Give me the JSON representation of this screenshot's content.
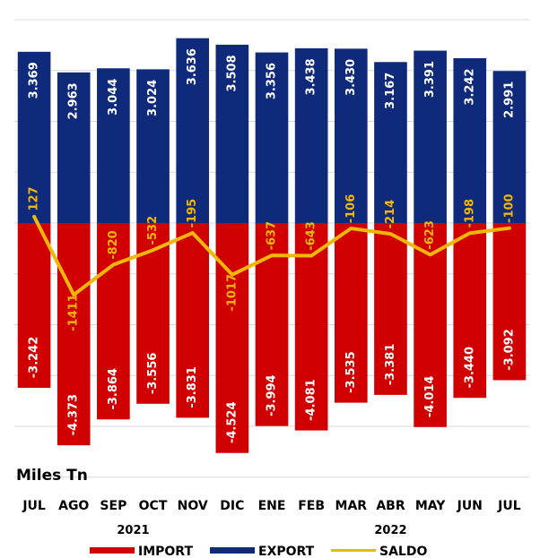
{
  "chart_data": {
    "type": "bar",
    "unit_label": "Miles Tn",
    "categories": [
      "JUL",
      "AGO",
      "SEP",
      "OCT",
      "NOV",
      "DIC",
      "ENE",
      "FEB",
      "MAR",
      "ABR",
      "MAY",
      "JUN",
      "JUL"
    ],
    "years": [
      {
        "label": "2021",
        "from": 0,
        "to": 5
      },
      {
        "label": "2022",
        "from": 6,
        "to": 12
      }
    ],
    "series": [
      {
        "name": "EXPORT",
        "type": "bar",
        "color": "#0f2a7a",
        "values": [
          3369,
          2963,
          3044,
          3024,
          3636,
          3508,
          3356,
          3438,
          3430,
          3167,
          3391,
          3242,
          2991
        ],
        "labels": [
          "3.369",
          "2.963",
          "3.044",
          "3.024",
          "3.636",
          "3.508",
          "3.356",
          "3.438",
          "3.430",
          "3.167",
          "3.391",
          "3.242",
          "2.991"
        ]
      },
      {
        "name": "IMPORT",
        "type": "bar",
        "color": "#d00000",
        "values": [
          -3242,
          -4373,
          -3864,
          -3556,
          -3831,
          -4524,
          -3994,
          -4081,
          -3535,
          -3381,
          -4014,
          -3440,
          -3092
        ],
        "labels": [
          "-3.242",
          "-4.373",
          "-3.864",
          "-3.556",
          "-3.831",
          "-4.524",
          "-3.994",
          "-4.081",
          "-3.535",
          "-3.381",
          "-4.014",
          "-3.440",
          "-3.092"
        ]
      },
      {
        "name": "SALDO",
        "type": "line",
        "color": "#f2b705",
        "values": [
          127,
          -1411,
          -820,
          -532,
          -195,
          -1017,
          -637,
          -643,
          -106,
          -214,
          -623,
          -198,
          -100
        ],
        "labels": [
          "127",
          "-1411",
          "-820",
          "-532",
          "-195",
          "-1017",
          "-637",
          "-643",
          "-106",
          "-214",
          "-623",
          "-198",
          "-100"
        ]
      }
    ],
    "ylim": [
      -5000,
      4000
    ],
    "grid": true,
    "legend": "bottom",
    "background_split": {
      "positive": "#0f2a7a",
      "negative": "#d00000"
    }
  }
}
